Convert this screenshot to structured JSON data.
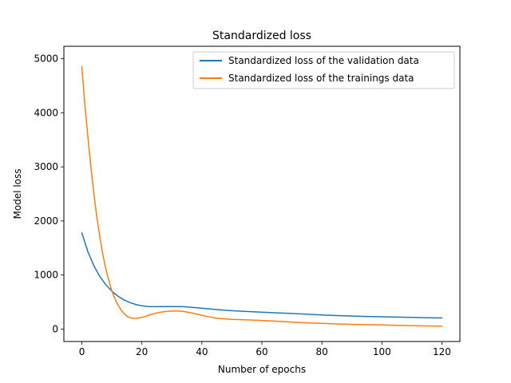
{
  "chart_data": {
    "type": "line",
    "title": "Standardized loss",
    "xlabel": "Number of epochs",
    "ylabel": "Model loss",
    "xlim": [
      -6,
      126
    ],
    "ylim": [
      -230,
      5230
    ],
    "xticks": [
      0,
      20,
      40,
      60,
      80,
      100,
      120
    ],
    "yticks": [
      0,
      1000,
      2000,
      3000,
      4000,
      5000
    ],
    "grid": false,
    "legend": "top-right",
    "series": [
      {
        "name": "Standardized loss of the validation data",
        "color": "#1f77b4",
        "x": [
          0,
          2,
          4,
          6,
          8,
          10,
          12,
          14,
          16,
          18,
          20,
          22,
          24,
          26,
          28,
          30,
          32,
          34,
          36,
          38,
          40,
          45,
          50,
          55,
          60,
          65,
          70,
          75,
          80,
          85,
          90,
          95,
          100,
          105,
          110,
          115,
          120
        ],
        "values": [
          1780,
          1430,
          1170,
          970,
          820,
          700,
          610,
          540,
          490,
          455,
          430,
          418,
          414,
          415,
          416,
          417,
          417,
          413,
          405,
          395,
          385,
          360,
          340,
          325,
          312,
          300,
          288,
          275,
          262,
          250,
          241,
          233,
          227,
          221,
          215,
          210,
          205
        ]
      },
      {
        "name": "Standardized loss of the trainings data",
        "color": "#ff7f0e",
        "x": [
          0,
          1,
          2,
          3,
          4,
          5,
          6,
          7,
          8,
          9,
          10,
          11,
          12,
          13,
          14,
          15,
          16,
          17,
          18,
          19,
          20,
          21,
          22,
          23,
          24,
          26,
          28,
          30,
          32,
          34,
          36,
          38,
          40,
          42,
          45,
          50,
          55,
          60,
          65,
          70,
          75,
          80,
          85,
          90,
          95,
          100,
          105,
          110,
          115,
          120
        ],
        "values": [
          4850,
          4150,
          3550,
          3000,
          2500,
          2070,
          1700,
          1380,
          1110,
          890,
          710,
          565,
          450,
          360,
          290,
          240,
          210,
          200,
          200,
          205,
          215,
          230,
          250,
          270,
          285,
          310,
          325,
          335,
          335,
          325,
          305,
          280,
          255,
          230,
          200,
          180,
          170,
          160,
          145,
          130,
          115,
          105,
          95,
          88,
          82,
          75,
          68,
          63,
          58,
          55
        ]
      }
    ]
  }
}
